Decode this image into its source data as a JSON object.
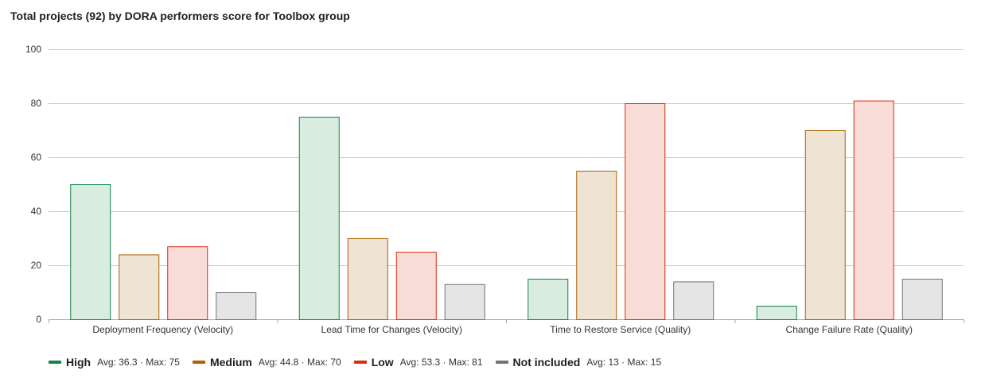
{
  "chart_data": {
    "type": "bar",
    "title": "Total projects (92) by DORA performers score for Toolbox group",
    "categories": [
      "Deployment Frequency (Velocity)",
      "Lead Time for Changes (Velocity)",
      "Time to Restore Service (Quality)",
      "Change Failure Rate (Quality)"
    ],
    "series": [
      {
        "name": "High",
        "values": [
          50,
          75,
          15,
          5
        ],
        "color": "#108548",
        "fill": "#d9ece0",
        "stats": "Avg: 36.3 · Max: 75"
      },
      {
        "name": "Medium",
        "values": [
          24,
          30,
          55,
          70
        ],
        "color": "#ab6100",
        "fill": "#efe3d3",
        "stats": "Avg: 44.8 · Max: 70"
      },
      {
        "name": "Low",
        "values": [
          27,
          25,
          80,
          81
        ],
        "color": "#dd2b0e",
        "fill": "#f8dcd8",
        "stats": "Avg: 53.3 · Max: 81"
      },
      {
        "name": "Not included",
        "values": [
          10,
          13,
          14,
          15
        ],
        "color": "#737278",
        "fill": "#e5e5e5",
        "stats": "Avg: 13 · Max: 15"
      }
    ],
    "yticks": [
      0,
      20,
      40,
      60,
      80,
      100
    ],
    "ylim": [
      0,
      100
    ],
    "grid": true,
    "legend_position": "bottom-left",
    "xlabel": "",
    "ylabel": ""
  }
}
